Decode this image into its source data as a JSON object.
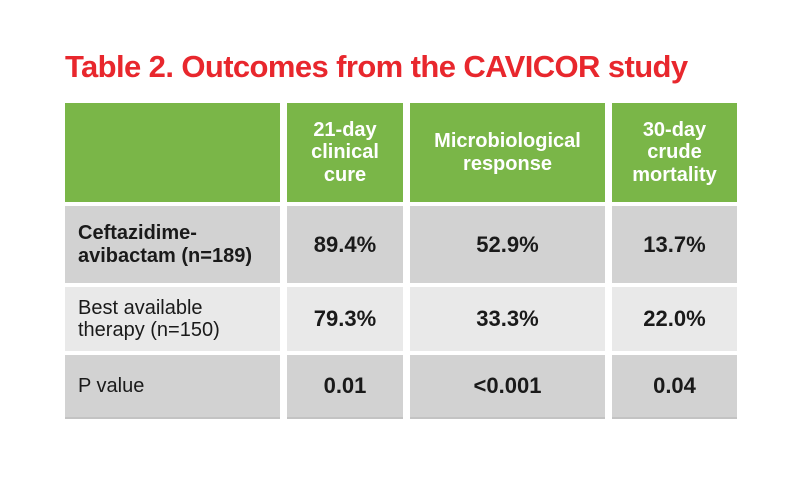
{
  "title": "Table 2. Outcomes from the CAVICOR study",
  "colors": {
    "title_red": "#e8272d",
    "header_green": "#7ab648",
    "row_dark": "#d2d2d2",
    "row_light": "#e9e9e9",
    "header_text": "#ffffff",
    "body_text": "#1a1a1a"
  },
  "chart_data": {
    "type": "table",
    "title": "Table 2. Outcomes from the CAVICOR study",
    "columns": [
      "",
      "21-day clinical cure",
      "Microbiological response",
      "30-day crude mortality"
    ],
    "rows": [
      {
        "label": "Ceftazidime-avibactam (n=189)",
        "values": [
          "89.4%",
          "52.9%",
          "13.7%"
        ]
      },
      {
        "label": "Best available therapy (n=150)",
        "values": [
          "79.3%",
          "33.3%",
          "22.0%"
        ]
      },
      {
        "label": "P value",
        "values": [
          "0.01",
          "<0.001",
          "0.04"
        ]
      }
    ],
    "layout": {
      "grid": "off",
      "legend": "none",
      "header_fill": "green",
      "row_fills": [
        "dark",
        "light",
        "dark"
      ],
      "bold_cells": "all values and first row label"
    }
  }
}
